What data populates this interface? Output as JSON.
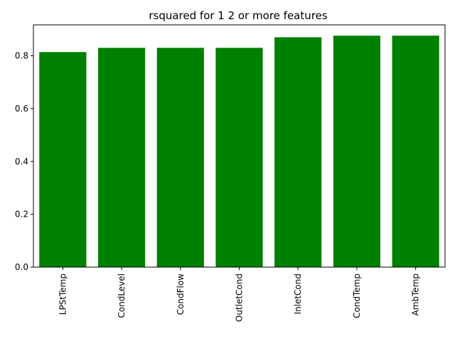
{
  "chart_data": {
    "type": "bar",
    "title": "rsquared for 1 2 or more features",
    "xlabel": "",
    "ylabel": "",
    "categories": [
      "LPStTemp",
      "CondLevel",
      "CondFlow",
      "OutletCond",
      "InletCond",
      "CondTemp",
      "AmbTemp"
    ],
    "values": [
      0.814,
      0.83,
      0.83,
      0.83,
      0.87,
      0.876,
      0.876
    ],
    "ylim": [
      0,
      0.917
    ],
    "yticks": [
      0.0,
      0.2,
      0.4,
      0.6,
      0.8
    ],
    "ytick_labels": [
      "0.0",
      "0.2",
      "0.4",
      "0.6",
      "0.8"
    ],
    "bar_color": "#008000",
    "grid": false,
    "legend": null
  }
}
